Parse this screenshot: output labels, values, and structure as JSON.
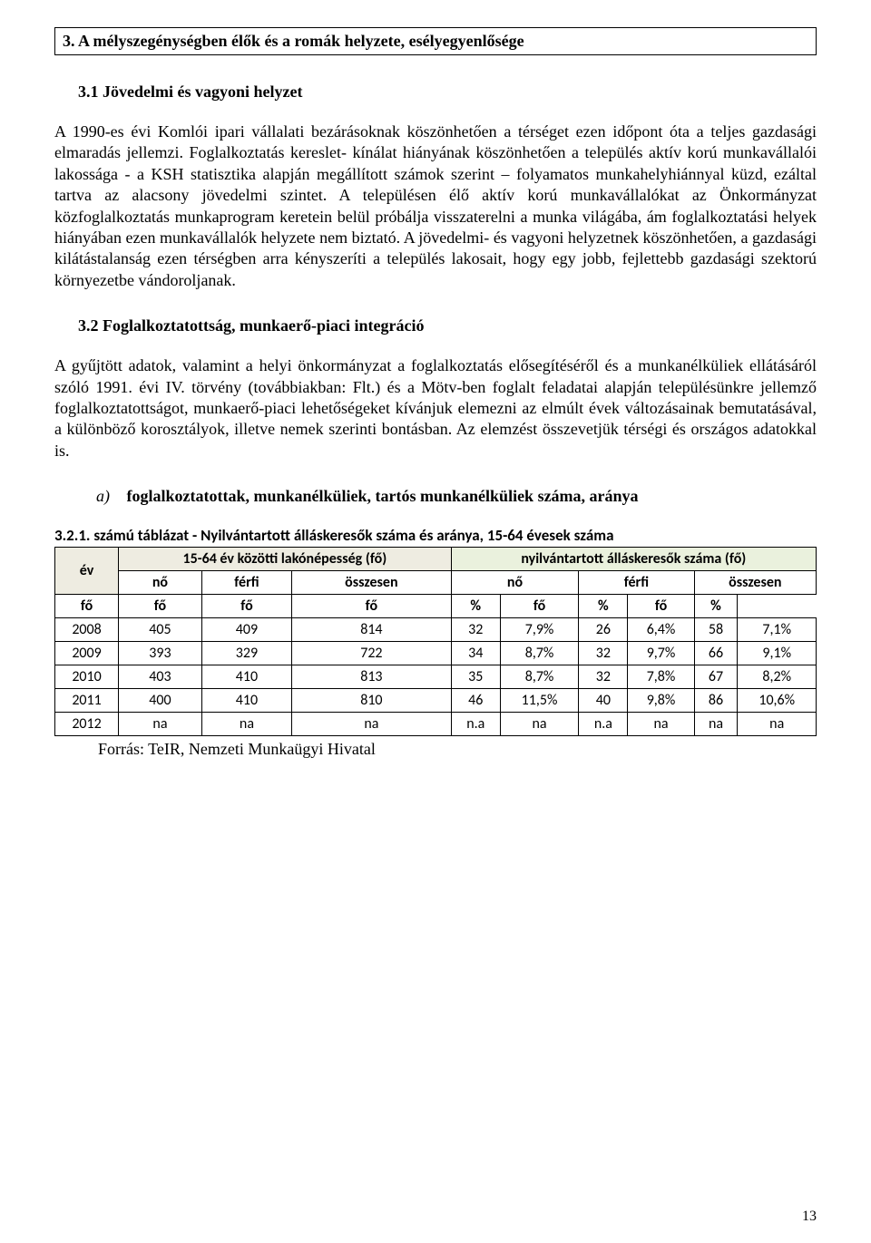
{
  "titleBox": "3. A mélyszegénységben élők és a romák helyzete, esélyegyenlősége",
  "sec31": {
    "heading": "3.1 Jövedelmi és vagyoni helyzet",
    "para": "A 1990-es évi Komlói ipari vállalati bezárásoknak köszönhetően a térséget ezen időpont óta a teljes gazdasági elmaradás jellemzi. Foglalkoztatás kereslet- kínálat hiányának köszönhetően a település aktív korú munkavállalói lakossága - a KSH statisztika alapján megállított számok szerint – folyamatos munkahelyhiánnyal küzd, ezáltal tartva az alacsony jövedelmi szintet.  A településen élő aktív korú munkavállalókat az Önkormányzat közfoglalkoztatás munkaprogram keretein belül próbálja visszaterelni a munka világába, ám foglalkoztatási helyek hiányában ezen munkavállalók helyzete nem biztató. A jövedelmi- és vagyoni helyzetnek köszönhetően, a gazdasági kilátástalanság ezen térségben arra kényszeríti a település lakosait, hogy egy jobb, fejlettebb gazdasági szektorú környezetbe vándoroljanak."
  },
  "sec32": {
    "heading": "3.2 Foglalkoztatottság, munkaerő-piaci integráció",
    "para": "A gyűjtött adatok, valamint a helyi önkormányzat a foglalkoztatás elősegítéséről és a munkanélküliek ellátásáról szóló 1991. évi IV. törvény (továbbiakban: Flt.) és a Mötv-ben foglalt feladatai alapján településünkre jellemző foglalkoztatottságot, munkaerő-piaci lehetőségeket kívánjuk elemezni az elmúlt évek változásainak bemutatásával, a különböző korosztályok, illetve nemek szerinti bontásban. Az elemzést összevetjük térségi és országos adatokkal is."
  },
  "listItem": {
    "marker": "a)",
    "label": "foglalkoztatottak, munkanélküliek, tartós munkanélküliek száma, aránya"
  },
  "table": {
    "title": "3.2.1. számú táblázat - Nyilvántartott álláskeresők száma és aránya, 15-64 évesek száma",
    "head1": {
      "ev": "év",
      "pop": "15-64 év közötti lakónépesség (fő)",
      "seek": "nyilvántartott álláskeresők száma (fő)"
    },
    "head2": {
      "no": "nő",
      "ferfi": "férfi",
      "ossz": "összesen"
    },
    "head3": {
      "fo": "fő",
      "pct": "%"
    },
    "rows": [
      {
        "ev": "2008",
        "no": "405",
        "ferfi": "409",
        "ossz": "814",
        "s_no": "32",
        "s_no_p": "7,9%",
        "s_fe": "26",
        "s_fe_p": "6,4%",
        "s_os": "58",
        "s_os_p": "7,1%"
      },
      {
        "ev": "2009",
        "no": "393",
        "ferfi": "329",
        "ossz": "722",
        "s_no": "34",
        "s_no_p": "8,7%",
        "s_fe": "32",
        "s_fe_p": "9,7%",
        "s_os": "66",
        "s_os_p": "9,1%"
      },
      {
        "ev": "2010",
        "no": "403",
        "ferfi": "410",
        "ossz": "813",
        "s_no": "35",
        "s_no_p": "8,7%",
        "s_fe": "32",
        "s_fe_p": "7,8%",
        "s_os": "67",
        "s_os_p": "8,2%"
      },
      {
        "ev": "2011",
        "no": "400",
        "ferfi": "410",
        "ossz": "810",
        "s_no": "46",
        "s_no_p": "11,5%",
        "s_fe": "40",
        "s_fe_p": "9,8%",
        "s_os": "86",
        "s_os_p": "10,6%"
      },
      {
        "ev": "2012",
        "no": "na",
        "ferfi": "na",
        "ossz": "na",
        "s_no": "n.a",
        "s_no_p": "na",
        "s_fe": "n.a",
        "s_fe_p": "na",
        "s_os": "na",
        "s_os_p": "na"
      }
    ],
    "source": "Forrás: TeIR, Nemzeti Munkaügyi Hivatal"
  },
  "pageNumber": "13",
  "colors": {
    "hdr_beige": "#eeece1",
    "hdr_green": "#eaf1dd"
  }
}
